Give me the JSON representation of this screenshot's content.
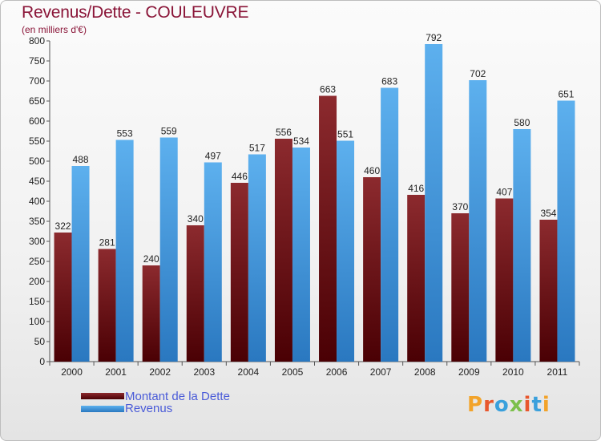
{
  "title": "Revenus/Dette - COULEUVRE",
  "subtitle": "(en milliers d'€)",
  "legend": [
    {
      "label": "Montant de la Dette",
      "color": "#6b0f14"
    },
    {
      "label": "Revenus",
      "color": "#4ea3e4"
    }
  ],
  "logo_text": "Proxiti",
  "chart_data": {
    "type": "bar",
    "categories": [
      "2000",
      "2001",
      "2002",
      "2003",
      "2004",
      "2005",
      "2006",
      "2007",
      "2008",
      "2009",
      "2010",
      "2011"
    ],
    "series": [
      {
        "name": "Montant de la Dette",
        "values": [
          322,
          281,
          240,
          340,
          446,
          556,
          663,
          460,
          416,
          370,
          407,
          354
        ],
        "color": "#6b0f14"
      },
      {
        "name": "Revenus",
        "values": [
          488,
          553,
          559,
          497,
          517,
          534,
          551,
          683,
          792,
          702,
          580,
          651
        ],
        "color": "#4ea3e4"
      }
    ],
    "ylim": [
      0,
      800
    ],
    "yticks": [
      0,
      50,
      100,
      150,
      200,
      250,
      300,
      350,
      400,
      450,
      500,
      550,
      600,
      650,
      700,
      750,
      800
    ],
    "grid": false,
    "legend_position": "bottom-left"
  }
}
